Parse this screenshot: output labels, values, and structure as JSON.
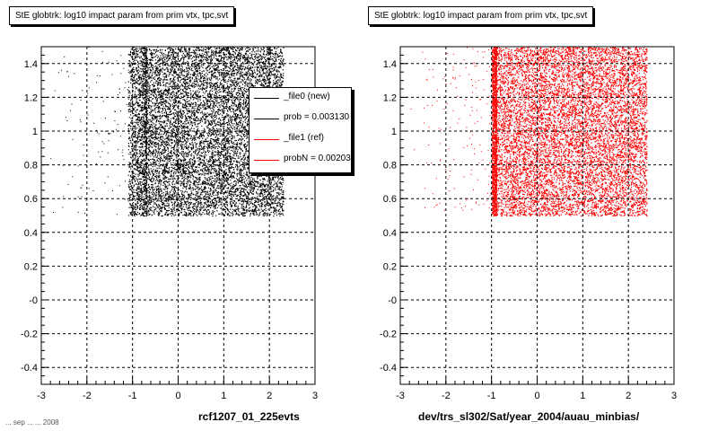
{
  "plots": [
    {
      "title": "StE globtrk: log10 impact param from prim vtx, tpc,svt",
      "xlabel": "rcf1207_01_225evts"
    },
    {
      "title": "StE globtrk: log10 impact param from prim vtx, tpc,svt",
      "xlabel": "dev/trs_sl302/Sat/year_2004/auau_minbias/"
    }
  ],
  "legend": {
    "entries": [
      {
        "label": "_file0 (new)",
        "color": "#000000"
      },
      {
        "label": "prob = 0.003130",
        "color": "#000000"
      },
      {
        "label": "_file1 (ref)",
        "color": "#ff0000"
      },
      {
        "label": "probN = 0.002030",
        "color": "#ff0000"
      }
    ]
  },
  "footer_text": "... sep ... ... 2008",
  "chart_data": [
    {
      "type": "scatter",
      "title": "StE globtrk: log10 impact param from prim vtx, tpc,svt",
      "xlabel": "rcf1207_01_225evts",
      "ylabel": "",
      "xlim": [
        -3,
        3
      ],
      "ylim": [
        -0.5,
        1.5
      ],
      "xticks": [
        -3,
        -2,
        -1,
        0,
        1,
        2,
        3
      ],
      "xtick_labels": [
        "-3",
        "-2",
        "-1",
        "0",
        "1",
        "2",
        "3"
      ],
      "yticks": [
        -0.4,
        -0.2,
        0,
        0.2,
        0.4,
        0.6,
        0.8,
        1,
        1.2,
        1.4
      ],
      "ytick_labels": [
        "-0.4",
        "-0.2",
        "-0",
        "0.2",
        "0.4",
        "0.6",
        "0.8",
        "1",
        "1.2",
        "1.4"
      ],
      "grid": true,
      "legend_position": "top-right",
      "series": [
        {
          "name": "_file0 (new)",
          "color": "#000000",
          "x_range": [
            -1.1,
            2.3
          ],
          "y_range": [
            0.5,
            1.5
          ],
          "dense_x_range": [
            -0.7,
            2.3
          ],
          "sparse_x_range": [
            -3,
            -0.7
          ]
        }
      ]
    },
    {
      "type": "scatter",
      "title": "StE globtrk: log10 impact param from prim vtx, tpc,svt",
      "xlabel": "dev/trs_sl302/Sat/year_2004/auau_minbias/",
      "ylabel": "",
      "xlim": [
        -3,
        3
      ],
      "ylim": [
        -0.5,
        1.5
      ],
      "xticks": [
        -3,
        -2,
        -1,
        0,
        1,
        2,
        3
      ],
      "xtick_labels": [
        "-3",
        "-2",
        "-1",
        "0",
        "1",
        "2",
        "3"
      ],
      "yticks": [
        -0.4,
        -0.2,
        0,
        0.2,
        0.4,
        0.6,
        0.8,
        1,
        1.2,
        1.4
      ],
      "ytick_labels": [
        "-0.4",
        "-0.2",
        "-0",
        "0.2",
        "0.4",
        "0.6",
        "0.8",
        "1",
        "1.2",
        "1.4"
      ],
      "grid": true,
      "series": [
        {
          "name": "_file1 (ref)",
          "color": "#ff0000",
          "x_range": [
            -1.0,
            2.4
          ],
          "y_range": [
            0.5,
            1.5
          ],
          "dense_x_range": [
            -0.9,
            2.4
          ],
          "sparse_x_range": [
            -2.9,
            -0.9
          ]
        }
      ]
    }
  ]
}
